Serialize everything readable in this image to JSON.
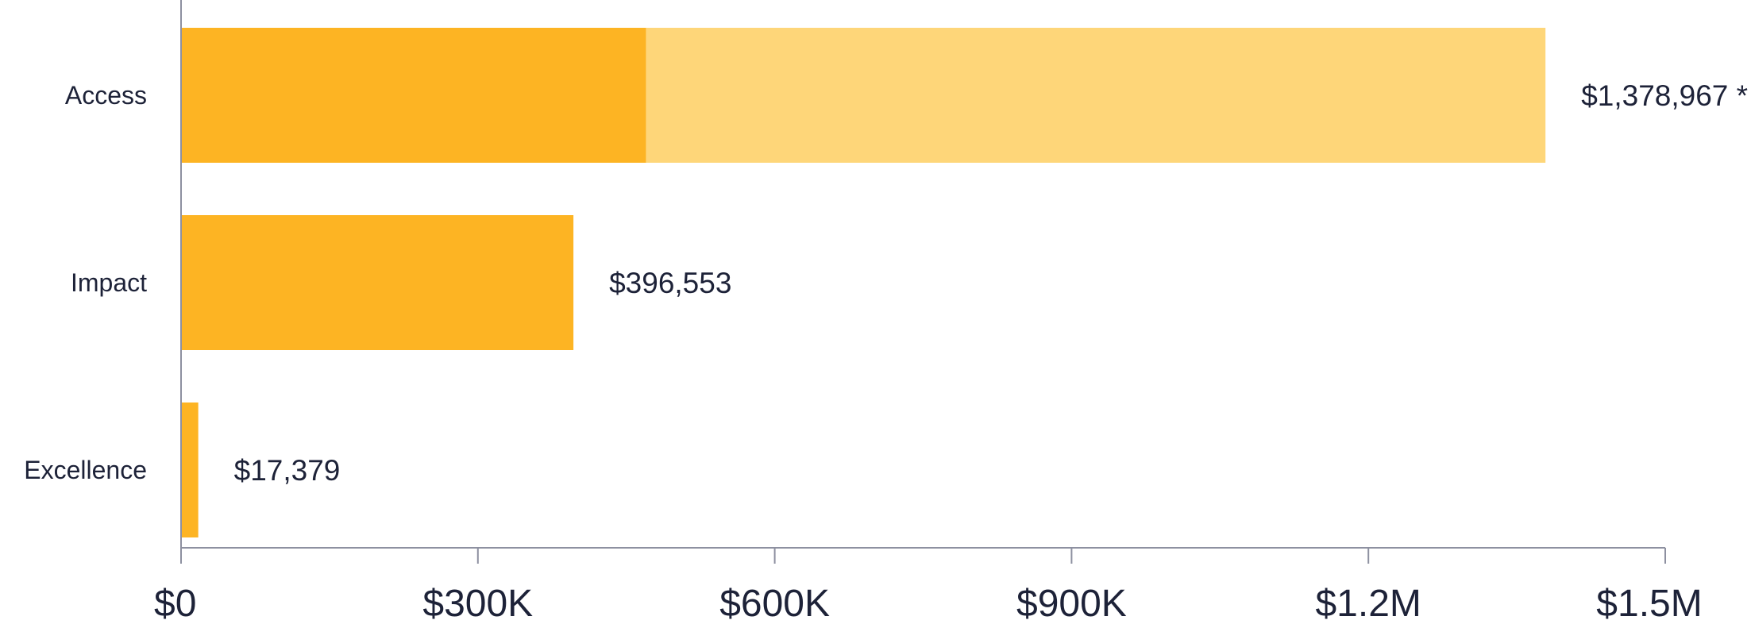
{
  "chart_data": {
    "type": "bar",
    "orientation": "horizontal",
    "stacked": true,
    "categories": [
      "Access",
      "Impact",
      "Excellence"
    ],
    "series": [
      {
        "values": [
          470000,
          396553,
          17379
        ],
        "color": "#fdb423"
      },
      {
        "values": [
          908967,
          0,
          0
        ],
        "color": "#fed679"
      }
    ],
    "data_labels": [
      "$1,378,967 *",
      "$396,553",
      "$17,379"
    ],
    "xlim": [
      0,
      1500000
    ],
    "xticks": [
      0,
      300000,
      600000,
      900000,
      1200000,
      1500000
    ],
    "xtick_labels": [
      "$0",
      "$300K",
      "$600K",
      "$900K",
      "$1.2M",
      "$1.5M"
    ],
    "grid": false,
    "legend": "none",
    "title": "",
    "xlabel": "",
    "ylabel": ""
  }
}
